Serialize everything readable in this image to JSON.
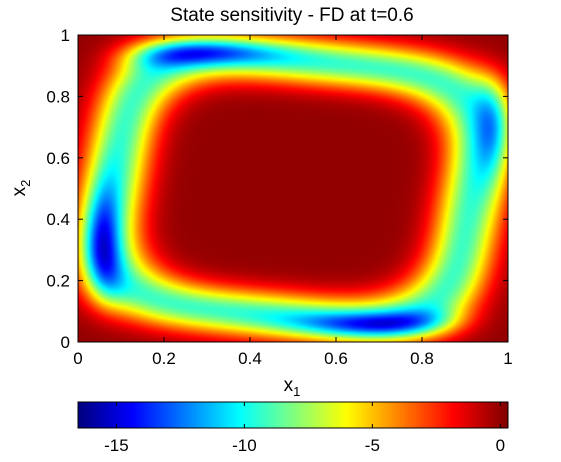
{
  "chart_data": {
    "type": "heatmap",
    "title": "State sensitivity - FD at t=0.6",
    "xlabel": {
      "base": "x",
      "sub": "1"
    },
    "ylabel": {
      "base": "x",
      "sub": "2"
    },
    "xlim": [
      0,
      1
    ],
    "ylim": [
      0,
      1
    ],
    "xticks": [
      0,
      0.2,
      0.4,
      0.6,
      0.8,
      1
    ],
    "xtick_labels": [
      "0",
      "0.2",
      "0.4",
      "0.6",
      "0.8",
      "1"
    ],
    "yticks": [
      0,
      0.2,
      0.4,
      0.6,
      0.8,
      1
    ],
    "ytick_labels": [
      "0",
      "0.2",
      "0.4",
      "0.6",
      "0.8",
      "1"
    ],
    "colormap": "jet",
    "colorbar": {
      "placement": "bottom",
      "range": [
        -16.5,
        0.3
      ],
      "ticks": [
        -15,
        -10,
        -5,
        0
      ],
      "tick_labels": [
        "-15",
        "-10",
        "-5",
        "0"
      ]
    },
    "field_description": "Values near 0 at center and corners; a ring of moderate negative values (~-8 to -11) with four elongated minima (~-16) near the middle of each edge, rotated slightly counter-clockwise.",
    "minima": [
      {
        "x": 0.2,
        "y": 0.95,
        "value": -16
      },
      {
        "x": 0.98,
        "y": 0.75,
        "value": -16
      },
      {
        "x": 0.75,
        "y": 0.05,
        "value": -16
      },
      {
        "x": 0.05,
        "y": 0.28,
        "value": -16
      }
    ]
  }
}
